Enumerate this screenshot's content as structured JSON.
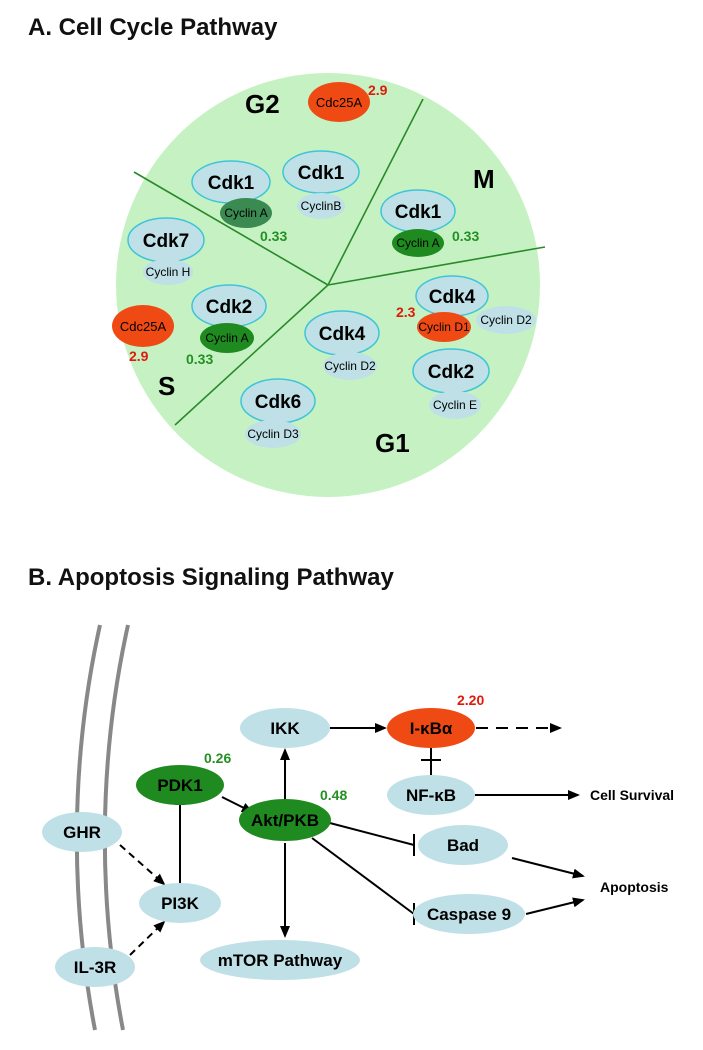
{
  "panel_a": {
    "title": "A. Cell Cycle Pathway",
    "phases": {
      "g2": "G2",
      "m": "M",
      "s": "S",
      "g1": "G1"
    },
    "g2": {
      "cdc25a": "Cdc25A",
      "cdc25a_value": "2.9",
      "cdk1_a": "Cdk1",
      "cyclin_a": "Cyclin A",
      "value": "0.33",
      "cdk1_b": "Cdk1",
      "cyclin_b": "CyclinB"
    },
    "m": {
      "cdk1": "Cdk1",
      "cyclin_a": "Cyclin A",
      "value": "0.33"
    },
    "s": {
      "cdk7": "Cdk7",
      "cyclin_h": "Cyclin H",
      "cdc25a": "Cdc25A",
      "cdc25a_value": "2.9",
      "cdk2": "Cdk2",
      "cyclin_a": "Cyclin A",
      "value": "0.33"
    },
    "g1": {
      "cdk4_a": "Cdk4",
      "cyclin_d1": "Cyclin D1",
      "cyclin_d1_value": "2.3",
      "cyclin_d2_a": "Cyclin D2",
      "cdk4_b": "Cdk4",
      "cyclin_d2_b": "Cyclin D2",
      "cdk2": "Cdk2",
      "cyclin_e": "Cyclin E",
      "cdk6": "Cdk6",
      "cyclin_d3": "Cyclin D3"
    },
    "colors": {
      "background": "#c6f2c3",
      "node": "#bfe0e6",
      "up": "#f04a14",
      "down": "#1f8a1f",
      "down_dark": "#3a8a52"
    }
  },
  "panel_b": {
    "title": "B. Apoptosis Signaling Pathway",
    "nodes": {
      "ghr": "GHR",
      "il3r": "IL-3R",
      "pi3k": "PI3K",
      "pdk1": "PDK1",
      "pdk1_value": "0.26",
      "akt": "Akt/PKB",
      "akt_value": "0.48",
      "ikk": "IKK",
      "ikba": "I-κBα",
      "ikba_value": "2.20",
      "nfkb": "NF-κB",
      "bad": "Bad",
      "caspase9": "Caspase 9",
      "mtor": "mTOR Pathway"
    },
    "outcomes": {
      "cell_survival": "Cell Survival",
      "apoptosis": "Apoptosis"
    }
  }
}
